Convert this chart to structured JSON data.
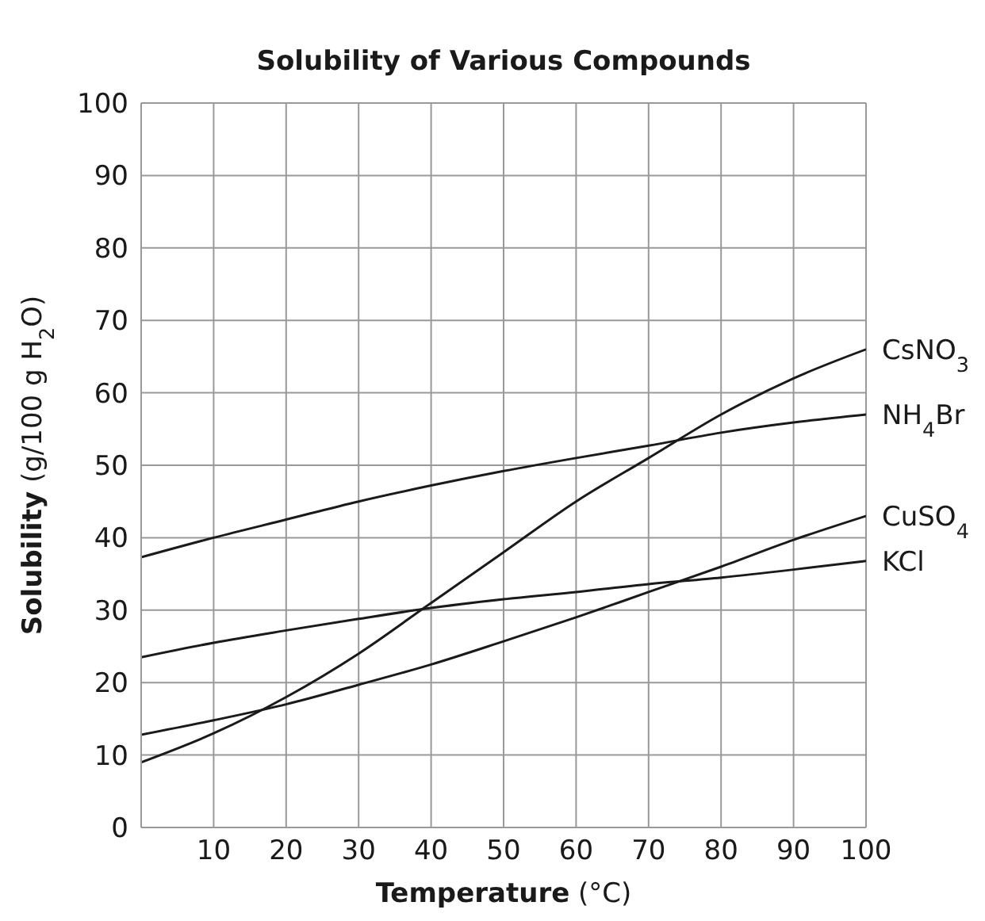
{
  "chart_data": {
    "type": "line",
    "title": "Solubility of Various Compounds",
    "xlabel": "Temperature (°C)",
    "ylabel": "Solubility (g/100 g H$_{2}$O)",
    "x": [
      0,
      10,
      20,
      30,
      40,
      50,
      60,
      70,
      80,
      90,
      100
    ],
    "series": [
      {
        "name": "CsNO$_{3}$",
        "color": "#1a1a1a",
        "values": [
          9,
          13,
          18,
          24,
          31,
          38,
          45,
          51,
          57,
          62,
          66
        ]
      },
      {
        "name": "NH$_{4}$Br",
        "color": "#1a1a1a",
        "values": [
          37.3,
          40,
          42.5,
          45,
          47.2,
          49.2,
          51,
          52.7,
          54.5,
          55.9,
          57
        ]
      },
      {
        "name": "CuSO$_{4}$",
        "color": "#1a1a1a",
        "values": [
          12.8,
          14.8,
          17,
          19.7,
          22.5,
          25.7,
          29,
          32.5,
          36,
          39.7,
          43
        ]
      },
      {
        "name": "KCl",
        "color": "#1a1a1a",
        "values": [
          23.5,
          25.5,
          27.2,
          28.8,
          30.3,
          31.5,
          32.5,
          33.6,
          34.5,
          35.6,
          36.8
        ]
      }
    ],
    "xlim": [
      0,
      100
    ],
    "xticks": [
      10,
      20,
      30,
      40,
      50,
      60,
      70,
      80,
      90,
      100
    ],
    "ylim": [
      0,
      100
    ],
    "yticks": [
      0,
      10,
      20,
      30,
      40,
      50,
      60,
      70,
      80,
      90,
      100
    ],
    "grid": true,
    "legend": false,
    "marker": "none",
    "line_style": "solid"
  }
}
